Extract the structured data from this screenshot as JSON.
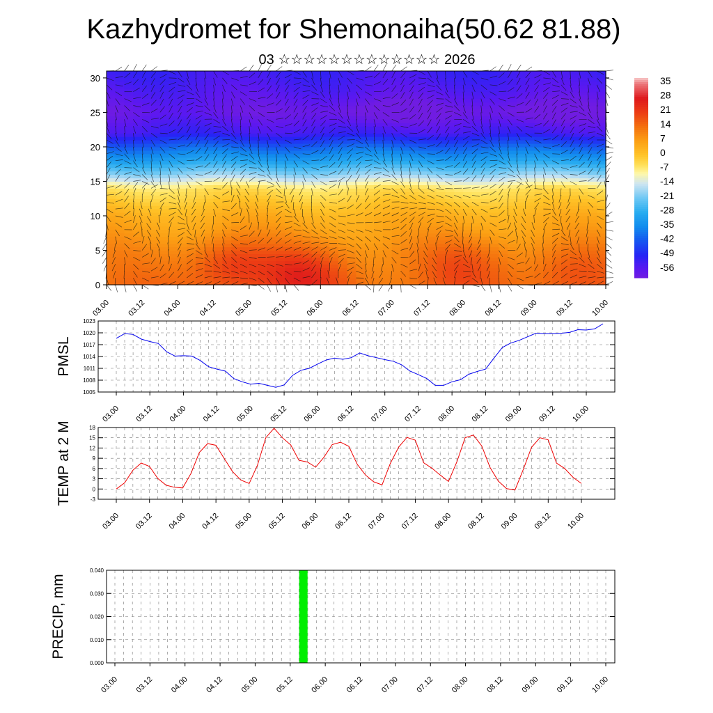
{
  "title": "Kazhydromet for Shemonaiha(50.62 81.88)",
  "subtitle": "03 ☆☆☆☆☆☆☆☆☆☆☆☆☆ 2026",
  "chart_data": [
    {
      "type": "heatmap",
      "description_label": "",
      "x_ticks": [
        "03.00",
        "03.12",
        "04.00",
        "04.12",
        "05.00",
        "05.12",
        "06.00",
        "06.12",
        "07.00",
        "07.12",
        "08.00",
        "08.12",
        "09.00",
        "09.12",
        "10.00"
      ],
      "y_ticks": [
        "0",
        "5",
        "10",
        "15",
        "20",
        "25",
        "30"
      ],
      "ylim": [
        0,
        31
      ],
      "colorbar": {
        "labels": [
          "35",
          "28",
          "21",
          "14",
          "7",
          "0",
          "-7",
          "-14",
          "-21",
          "-28",
          "-35",
          "-42",
          "-49",
          "-56"
        ],
        "range": [
          -60,
          38
        ]
      },
      "temperature_profile": [
        {
          "height_km": 0,
          "value": 14
        },
        {
          "height_km": 5,
          "value": 10
        },
        {
          "height_km": 10,
          "value": 4
        },
        {
          "height_km": 14,
          "value": -5
        },
        {
          "height_km": 16,
          "value": -18
        },
        {
          "height_km": 18,
          "value": -30
        },
        {
          "height_km": 20,
          "value": -40
        },
        {
          "height_km": 22,
          "value": -52
        },
        {
          "height_km": 25,
          "value": -58
        },
        {
          "height_km": 28,
          "value": -55
        },
        {
          "height_km": 31,
          "value": -52
        }
      ],
      "warm_cores": [
        {
          "x_step": 14,
          "height_km": 3,
          "value": 25
        },
        {
          "x_step": 22,
          "height_km": 1.5,
          "value": 28
        },
        {
          "x_step": 40,
          "height_km": 3,
          "value": 20
        },
        {
          "x_step": 52,
          "height_km": 2,
          "value": 20
        }
      ],
      "cold_cores": [
        {
          "x_step": 30,
          "height_km": 25,
          "value": -62
        },
        {
          "x_step": 48,
          "height_km": 25,
          "value": -62
        }
      ]
    },
    {
      "type": "line",
      "ylabel": "PMSL",
      "ylim": [
        1005,
        1023
      ],
      "y_ticks": [
        "1005",
        "1008",
        "1011",
        "1014",
        "1017",
        "1020",
        "1023"
      ],
      "x_ticks": [
        "03.00",
        "03.12",
        "04.00",
        "04.12",
        "05.00",
        "05.12",
        "06.00",
        "06.12",
        "07.00",
        "07.12",
        "08.00",
        "08.12",
        "09.00",
        "09.12",
        "10.00"
      ],
      "color": "#0000ee",
      "series": [
        {
          "values": [
            1018.6,
            1019.8,
            1019.6,
            1018.4,
            1017.8,
            1017.3,
            1015.2,
            1014.1,
            1014.2,
            1014.1,
            1013.0,
            1011.4,
            1010.8,
            1010.3,
            1008.4,
            1007.6,
            1007.0,
            1007.2,
            1006.7,
            1006.2,
            1006.8,
            1009.2,
            1010.5,
            1011.0,
            1012.1,
            1013.1,
            1013.6,
            1013.3,
            1013.7,
            1014.9,
            1014.2,
            1013.7,
            1013.2,
            1012.8,
            1011.9,
            1010.3,
            1009.4,
            1008.4,
            1006.7,
            1006.7,
            1007.6,
            1008.1,
            1009.5,
            1010.2,
            1010.8,
            1013.6,
            1016.3,
            1017.4,
            1018.1,
            1019.0,
            1019.9,
            1019.8,
            1019.8,
            1019.9,
            1020.1,
            1020.8,
            1020.7,
            1021.0,
            1022.3
          ]
        }
      ]
    },
    {
      "type": "line",
      "ylabel": "TEMP at 2 M",
      "ylim": [
        -3,
        18
      ],
      "y_ticks": [
        "-3",
        "0",
        "3",
        "6",
        "9",
        "12",
        "15",
        "18"
      ],
      "x_ticks": [
        "03.00",
        "03.12",
        "04.00",
        "04.12",
        "05.00",
        "05.12",
        "06.00",
        "06.12",
        "07.00",
        "07.12",
        "08.00",
        "08.12",
        "09.00",
        "09.12",
        "10.00"
      ],
      "color": "#ee0000",
      "series": [
        {
          "values": [
            0.0,
            1.8,
            5.5,
            7.6,
            6.6,
            3.1,
            1.1,
            0.5,
            0.3,
            4.6,
            10.7,
            13.3,
            12.8,
            8.9,
            5.1,
            2.6,
            1.6,
            7.0,
            15.0,
            17.8,
            15.0,
            12.9,
            8.4,
            7.9,
            6.4,
            9.3,
            13.0,
            13.7,
            12.5,
            7.3,
            4.1,
            2.1,
            1.2,
            7.5,
            12.3,
            15.1,
            14.3,
            7.7,
            6.1,
            4.1,
            2.2,
            7.9,
            15.0,
            15.8,
            12.6,
            6.3,
            2.3,
            0.1,
            -0.3,
            5.7,
            12.2,
            15.0,
            14.4,
            7.6,
            6.0,
            3.4,
            1.6
          ]
        }
      ]
    },
    {
      "type": "bar",
      "ylabel": "PRECIP, mm",
      "ylim": [
        0,
        0.04
      ],
      "y_ticks": [
        "0.000",
        "0.010",
        "0.020",
        "0.030",
        "0.040"
      ],
      "x_ticks": [
        "03.00",
        "03.12",
        "04.00",
        "04.12",
        "05.00",
        "05.12",
        "06.00",
        "06.12",
        "07.00",
        "07.12",
        "08.00",
        "08.12",
        "09.00",
        "09.12",
        "10.00"
      ],
      "color": "#00ee00",
      "bars": [
        {
          "x_step": 21.5,
          "value": 0.04
        }
      ]
    }
  ]
}
